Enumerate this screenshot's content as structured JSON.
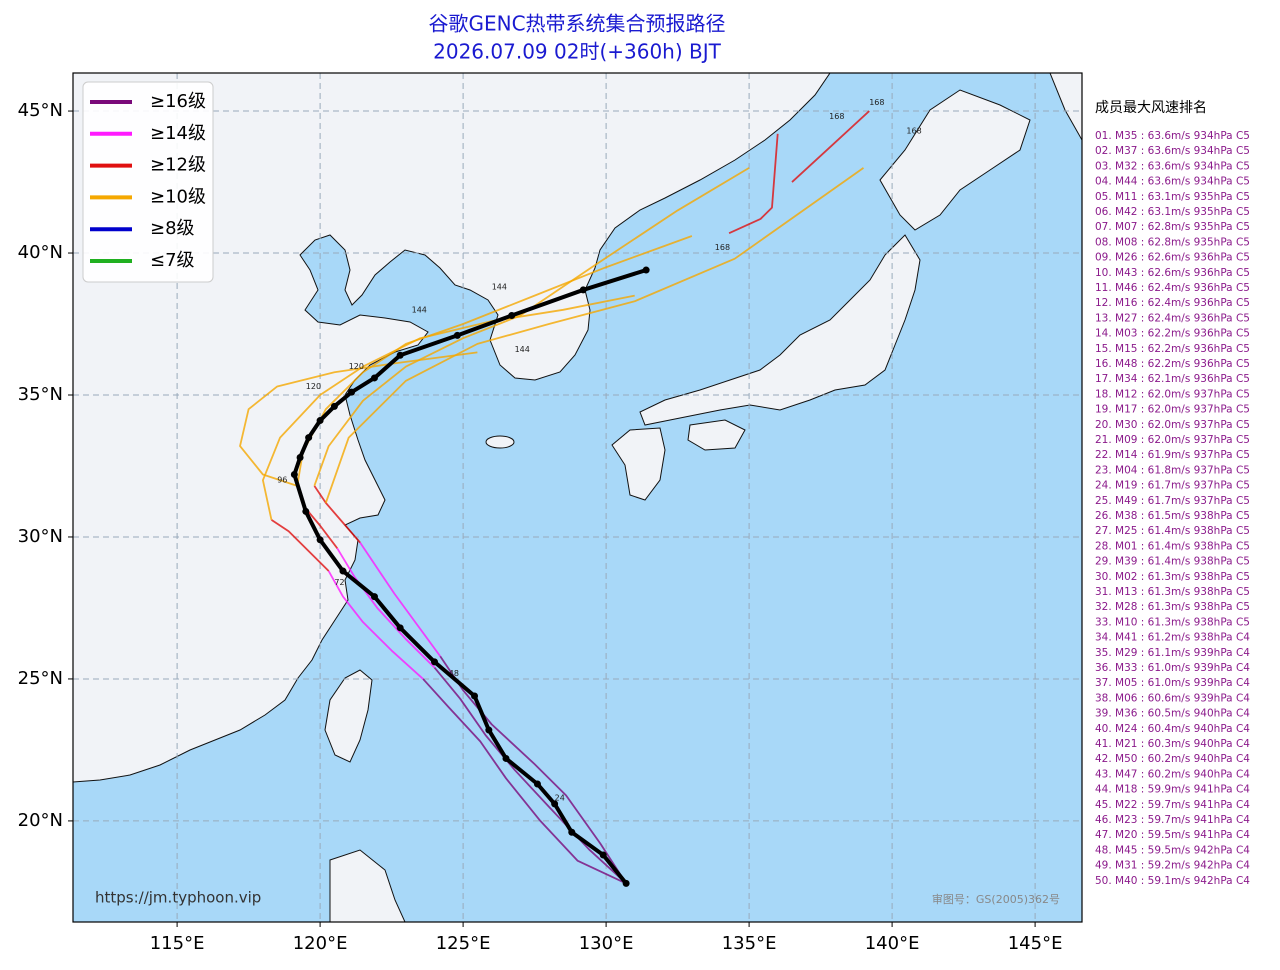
{
  "title": [
    "谷歌GENC热带系统集合预报路径",
    "2026.07.09 02时(+360h) BJT"
  ],
  "map": {
    "type": "track-map",
    "xlim": [
      111.36,
      146.64
    ],
    "ylim": [
      16.44,
      46.34
    ],
    "xticks": [
      {
        "value": 115,
        "label": "115°E"
      },
      {
        "value": 120,
        "label": "120°E"
      },
      {
        "value": 125,
        "label": "125°E"
      },
      {
        "value": 130,
        "label": "130°E"
      },
      {
        "value": 135,
        "label": "135°E"
      },
      {
        "value": 140,
        "label": "140°E"
      },
      {
        "value": 145,
        "label": "145°E"
      }
    ],
    "yticks": [
      {
        "value": 20,
        "label": "20°N"
      },
      {
        "value": 25,
        "label": "25°N"
      },
      {
        "value": 30,
        "label": "30°N"
      },
      {
        "value": 35,
        "label": "35°N"
      },
      {
        "value": 40,
        "label": "40°N"
      },
      {
        "value": 45,
        "label": "45°N"
      }
    ],
    "grid": true,
    "legend": [
      {
        "name": "≥16级",
        "color": "#7a0a7a"
      },
      {
        "name": "≥14级",
        "color": "#ff1aff"
      },
      {
        "name": "≥12级",
        "color": "#e01010"
      },
      {
        "name": "≥10级",
        "color": "#f5a800"
      },
      {
        "name": "≥8级",
        "color": "#0000cc"
      },
      {
        "name": "≤7级",
        "color": "#20b020"
      }
    ],
    "tracks": [
      {
        "color": "#7a0a7a",
        "lon": [
          130.7,
          129.4,
          128.0,
          126.8,
          125.8,
          124.9,
          124.0
        ],
        "lat": [
          17.8,
          19.0,
          20.5,
          21.8,
          23.0,
          24.3,
          25.4
        ]
      },
      {
        "color": "#7a0a7a",
        "lon": [
          130.7,
          129.0,
          127.7,
          126.5,
          125.6,
          124.5,
          123.6
        ],
        "lat": [
          17.8,
          18.6,
          20.0,
          21.5,
          22.8,
          24.0,
          25.0
        ]
      },
      {
        "color": "#7a0a7a",
        "lon": [
          130.7,
          129.8,
          128.6,
          127.5,
          126.0,
          125.0,
          124.2
        ],
        "lat": [
          17.8,
          19.2,
          20.9,
          22.0,
          23.4,
          24.6,
          25.8
        ]
      },
      {
        "color": "#ff1aff",
        "lon": [
          124.0,
          123.0,
          122.0,
          121.2,
          120.6
        ],
        "lat": [
          25.4,
          26.4,
          27.5,
          28.6,
          29.6
        ]
      },
      {
        "color": "#ff1aff",
        "lon": [
          123.6,
          122.5,
          121.5,
          120.8,
          120.3
        ],
        "lat": [
          25.0,
          26.0,
          27.0,
          27.9,
          28.8
        ]
      },
      {
        "color": "#ff1aff",
        "lon": [
          124.2,
          123.4,
          122.6,
          122.0,
          121.4
        ],
        "lat": [
          25.8,
          26.9,
          28.0,
          28.9,
          29.8
        ]
      },
      {
        "color": "#e01010",
        "lon": [
          120.6,
          120.0,
          119.5,
          119.2
        ],
        "lat": [
          29.6,
          30.4,
          31.0,
          31.8
        ]
      },
      {
        "color": "#e01010",
        "lon": [
          120.3,
          119.6,
          118.9,
          118.3
        ],
        "lat": [
          28.8,
          29.5,
          30.2,
          30.6
        ]
      },
      {
        "color": "#e01010",
        "lon": [
          121.4,
          120.8,
          120.2,
          119.8
        ],
        "lat": [
          29.8,
          30.5,
          31.2,
          31.8
        ]
      },
      {
        "color": "#f5a800",
        "lon": [
          119.2,
          119.4,
          120.2,
          121.5,
          123.0,
          125.0,
          127.5,
          130.0,
          133.0
        ],
        "lat": [
          31.8,
          33.0,
          34.5,
          35.8,
          36.8,
          37.5,
          38.5,
          39.5,
          40.6
        ]
      },
      {
        "color": "#f5a800",
        "lon": [
          118.3,
          118.0,
          118.6,
          120.0,
          121.5,
          123.5,
          126.0,
          128.5,
          131.0
        ],
        "lat": [
          30.6,
          32.0,
          33.5,
          35.0,
          36.0,
          37.0,
          37.6,
          38.0,
          38.5
        ]
      },
      {
        "color": "#f5a800",
        "lon": [
          119.8,
          120.3,
          121.5,
          123.0,
          125.0,
          127.0,
          129.5,
          132.5,
          135.0
        ],
        "lat": [
          31.8,
          33.2,
          34.8,
          36.0,
          37.0,
          37.8,
          39.5,
          41.5,
          43.0
        ]
      },
      {
        "color": "#f5a800",
        "lon": [
          119.2,
          118.0,
          117.2,
          117.5,
          118.5,
          120.5,
          122.5,
          125.5
        ],
        "lat": [
          31.8,
          32.2,
          33.2,
          34.5,
          35.3,
          35.8,
          36.1,
          36.5
        ]
      },
      {
        "color": "#f5a800",
        "lon": [
          120.2,
          121.0,
          123.0,
          125.5,
          128.0,
          131.0,
          134.5,
          139.0
        ],
        "lat": [
          31.2,
          33.5,
          35.5,
          36.8,
          37.5,
          38.3,
          39.8,
          43.0
        ]
      },
      {
        "color": "#e01010",
        "lon": [
          134.3,
          135.4,
          135.8,
          136.0
        ],
        "lat": [
          40.7,
          41.2,
          41.6,
          44.2
        ]
      },
      {
        "color": "#e01010",
        "lon": [
          136.5,
          137.8,
          139.2
        ],
        "lat": [
          42.5,
          43.7,
          45.0
        ]
      }
    ],
    "mean_track": {
      "color": "#000000",
      "lon": [
        130.7,
        129.9,
        128.8,
        128.2,
        127.6,
        126.5,
        125.9,
        125.4,
        124.0,
        122.8,
        121.9,
        120.8,
        120.0,
        119.5,
        119.1,
        119.3,
        119.6,
        120.0,
        120.5,
        121.1,
        121.9,
        122.8,
        124.8,
        126.7,
        129.2,
        131.4
      ],
      "lat": [
        17.8,
        18.8,
        19.6,
        20.6,
        21.3,
        22.2,
        23.2,
        24.4,
        25.6,
        26.8,
        27.9,
        28.8,
        29.9,
        30.9,
        32.2,
        32.8,
        33.5,
        34.1,
        34.6,
        35.1,
        35.6,
        36.4,
        37.1,
        37.8,
        38.7,
        39.4
      ]
    },
    "hour_labels": [
      {
        "text": "168",
        "lon": 139.2,
        "lat": 45.3
      },
      {
        "text": "168",
        "lon": 137.8,
        "lat": 44.8
      },
      {
        "text": "168",
        "lon": 140.5,
        "lat": 44.3
      },
      {
        "text": "168",
        "lon": 133.8,
        "lat": 40.2
      },
      {
        "text": "144",
        "lon": 126.0,
        "lat": 38.8
      },
      {
        "text": "144",
        "lon": 123.2,
        "lat": 38.0
      },
      {
        "text": "144",
        "lon": 126.8,
        "lat": 36.6
      },
      {
        "text": "120",
        "lon": 121.0,
        "lat": 36.0
      },
      {
        "text": "120",
        "lon": 119.5,
        "lat": 35.3
      },
      {
        "text": "96",
        "lon": 118.5,
        "lat": 32.0
      },
      {
        "text": "72",
        "lon": 120.5,
        "lat": 28.4
      },
      {
        "text": "48",
        "lon": 124.5,
        "lat": 25.2
      },
      {
        "text": "24",
        "lon": 128.2,
        "lat": 20.8
      }
    ]
  },
  "url": "https://jm.typhoon.vip",
  "approval": "审图号：GS(2005)362号",
  "ranking_title": "成员最大风速排名",
  "rankings": [
    "01. M35 : 63.6m/s 934hPa C5",
    "02. M37 : 63.6m/s 934hPa C5",
    "03. M32 : 63.6m/s 934hPa C5",
    "04. M44 : 63.6m/s 934hPa C5",
    "05. M11 : 63.1m/s 935hPa C5",
    "06. M42 : 63.1m/s 935hPa C5",
    "07. M07 : 62.8m/s 935hPa C5",
    "08. M08 : 62.8m/s 935hPa C5",
    "09. M26 : 62.6m/s 936hPa C5",
    "10. M43 : 62.6m/s 936hPa C5",
    "11. M46 : 62.4m/s 936hPa C5",
    "12. M16 : 62.4m/s 936hPa C5",
    "13. M27 : 62.4m/s 936hPa C5",
    "14. M03 : 62.2m/s 936hPa C5",
    "15. M15 : 62.2m/s 936hPa C5",
    "16. M48 : 62.2m/s 936hPa C5",
    "17. M34 : 62.1m/s 936hPa C5",
    "18. M12 : 62.0m/s 937hPa C5",
    "19. M17 : 62.0m/s 937hPa C5",
    "20. M30 : 62.0m/s 937hPa C5",
    "21. M09 : 62.0m/s 937hPa C5",
    "22. M14 : 61.9m/s 937hPa C5",
    "23. M04 : 61.8m/s 937hPa C5",
    "24. M19 : 61.7m/s 937hPa C5",
    "25. M49 : 61.7m/s 937hPa C5",
    "26. M38 : 61.5m/s 938hPa C5",
    "27. M25 : 61.4m/s 938hPa C5",
    "28. M01 : 61.4m/s 938hPa C5",
    "29. M39 : 61.4m/s 938hPa C5",
    "30. M02 : 61.3m/s 938hPa C5",
    "31. M13 : 61.3m/s 938hPa C5",
    "32. M28 : 61.3m/s 938hPa C5",
    "33. M10 : 61.3m/s 938hPa C5",
    "34. M41 : 61.2m/s 938hPa C4",
    "35. M29 : 61.1m/s 939hPa C4",
    "36. M33 : 61.0m/s 939hPa C4",
    "37. M05 : 61.0m/s 939hPa C4",
    "38. M06 : 60.6m/s 939hPa C4",
    "39. M36 : 60.5m/s 940hPa C4",
    "40. M24 : 60.4m/s 940hPa C4",
    "41. M21 : 60.3m/s 940hPa C4",
    "42. M50 : 60.2m/s 940hPa C4",
    "43. M47 : 60.2m/s 940hPa C4",
    "44. M18 : 59.9m/s 941hPa C4",
    "45. M22 : 59.7m/s 941hPa C4",
    "46. M23 : 59.7m/s 941hPa C4",
    "47. M20 : 59.5m/s 941hPa C4",
    "48. M45 : 59.5m/s 942hPa C4",
    "49. M31 : 59.2m/s 942hPa C4",
    "50. M40 : 59.1m/s 942hPa C4"
  ]
}
